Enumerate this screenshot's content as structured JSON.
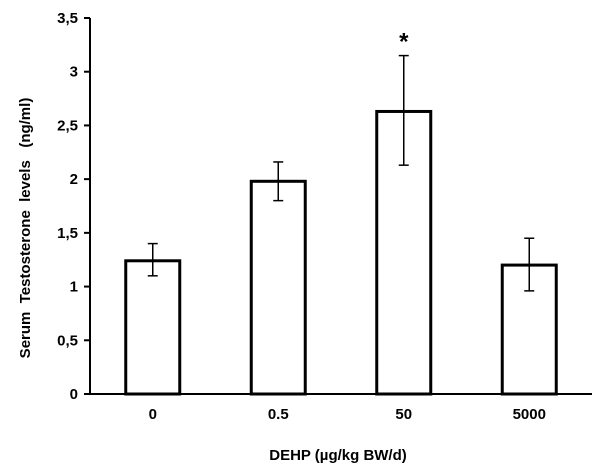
{
  "chart_data": {
    "type": "bar",
    "categories": [
      "0",
      "0.5",
      "50",
      "5000"
    ],
    "values": [
      1.24,
      1.98,
      2.63,
      1.2
    ],
    "error_low": [
      1.1,
      1.8,
      2.13,
      0.96
    ],
    "error_high": [
      1.4,
      2.16,
      3.15,
      1.45
    ],
    "annotations": [
      {
        "category": "50",
        "text": "*"
      }
    ],
    "xlabel": "DEHP (µg/kg BW/d)",
    "ylabel": "Serum  Testosterone  levels   (ng/ml)",
    "ylim": [
      0,
      3.5
    ],
    "yticks": [
      0,
      0.5,
      1,
      1.5,
      2,
      2.5,
      3,
      3.5
    ],
    "ytick_labels": [
      "0",
      "0,5",
      "1",
      "1,5",
      "2",
      "2,5",
      "3",
      "3,5"
    ],
    "grid": false,
    "bar_fill": "#ffffff",
    "bar_stroke": "#000000"
  }
}
